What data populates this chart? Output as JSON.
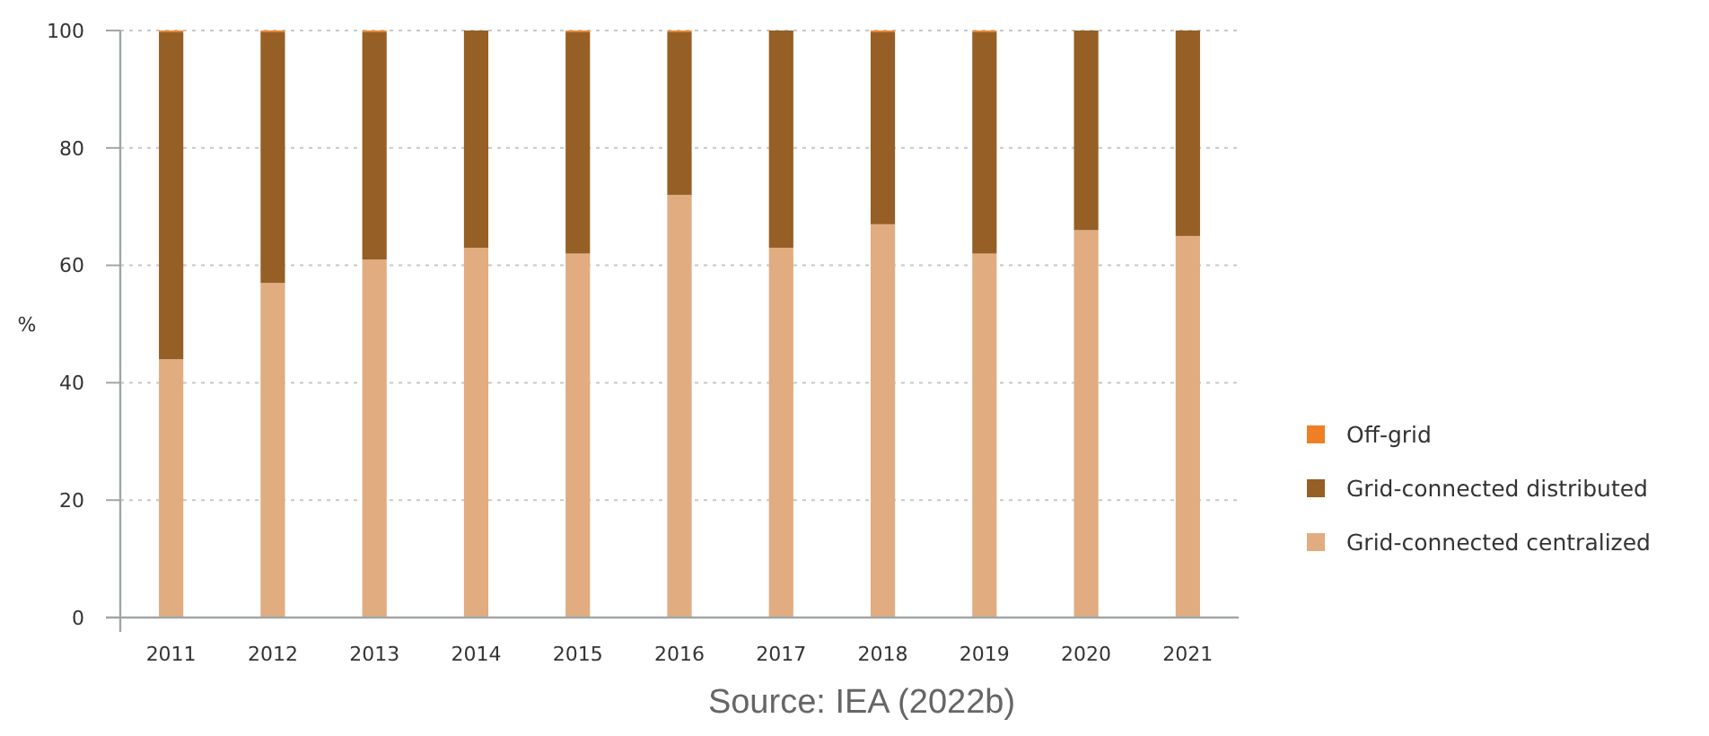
{
  "chart_data": {
    "type": "bar",
    "stacked": true,
    "ylabel": "%",
    "categories": [
      "2011",
      "2012",
      "2013",
      "2014",
      "2015",
      "2016",
      "2017",
      "2018",
      "2019",
      "2020",
      "2021"
    ],
    "series": [
      {
        "name": "Grid-connected centralized",
        "color": "#e0ac80",
        "values": [
          44,
          57,
          61,
          63,
          62,
          72,
          63,
          67,
          62,
          66,
          65
        ]
      },
      {
        "name": "Grid-connected distributed",
        "color": "#955f25",
        "values": [
          55.7,
          42.7,
          38.7,
          37,
          37.7,
          27.7,
          37,
          32.7,
          37.7,
          34,
          35
        ]
      },
      {
        "name": "Off-grid",
        "color": "#ee7f25",
        "values": [
          0.3,
          0.3,
          0.3,
          0,
          0.3,
          0.3,
          0,
          0.3,
          0.3,
          0,
          0
        ]
      }
    ],
    "ylim": [
      0,
      100
    ],
    "yticks": [
      0,
      20,
      40,
      60,
      80,
      100
    ],
    "grid": "y",
    "legend": "right",
    "annotations": [
      "Source: IEA (2022b)"
    ]
  }
}
